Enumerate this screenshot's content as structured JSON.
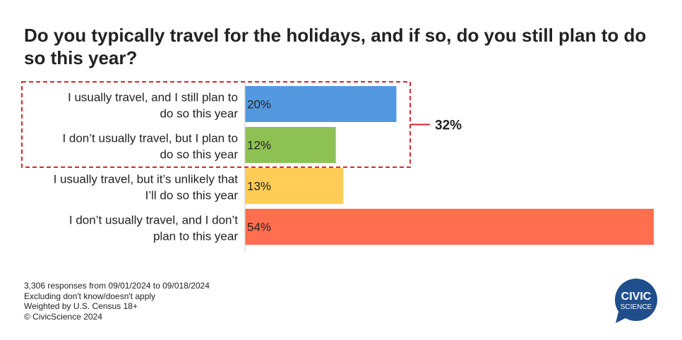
{
  "title": "Do you typically travel for the holidays, and if so, do you still plan to do so this year?",
  "chart_data": {
    "type": "bar",
    "orientation": "horizontal",
    "categories": [
      [
        "I usually travel, and I still plan to",
        "do so this year"
      ],
      [
        "I don’t usually travel, but I plan to",
        "do so this year"
      ],
      [
        "I usually travel, but it’s unlikely that",
        "I’ll do so this year"
      ],
      [
        "I don’t usually travel, and I don’t",
        "plan to this year"
      ]
    ],
    "values": [
      20,
      12,
      13,
      54
    ],
    "value_labels": [
      "20%",
      "12%",
      "13%",
      "54%"
    ],
    "colors": [
      "#5499E0",
      "#8DC153",
      "#FFCC55",
      "#FF6E4E"
    ],
    "xlim": [
      0,
      54
    ],
    "grid": false,
    "annotation": {
      "label": "32%",
      "bracket_categories": [
        0,
        1
      ],
      "color": "#D9262C"
    }
  },
  "footer": {
    "lines": [
      "3,306 responses from 09/01/2024 to 09/018/2024",
      "Excluding don't know/doesn't apply",
      "Weighted by U.S. Census 18+",
      "© CivicScience 2024"
    ]
  },
  "logo": {
    "line1": "CIVIC",
    "line2": "SCIENCE",
    "color": "#1F4E8C"
  }
}
